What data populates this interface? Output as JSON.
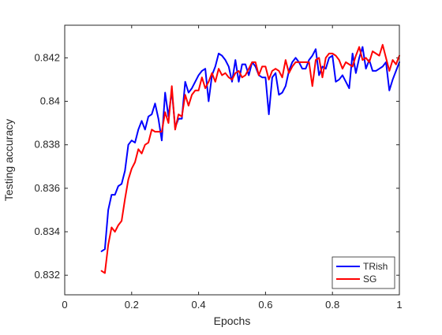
{
  "chart_data": {
    "type": "line",
    "title": "",
    "xlabel": "Epochs",
    "ylabel": "Testing accuracy",
    "xlim": [
      0,
      1
    ],
    "ylim": [
      0.8311,
      0.8435
    ],
    "xticks": [
      0,
      0.2,
      0.4,
      0.6,
      0.8,
      1
    ],
    "xtick_labels": [
      "0",
      "0.2",
      "0.4",
      "0.6",
      "0.8",
      "1"
    ],
    "yticks": [
      0.832,
      0.834,
      0.836,
      0.838,
      0.84,
      0.842
    ],
    "ytick_labels": [
      "0.832",
      "0.834",
      "0.836",
      "0.838",
      "0.84",
      "0.842"
    ],
    "grid": false,
    "legend_position": "bottom-right",
    "series": [
      {
        "name": "TRish",
        "color": "#0000ff",
        "x": [
          0.11,
          0.12,
          0.13,
          0.14,
          0.15,
          0.16,
          0.17,
          0.18,
          0.19,
          0.2,
          0.21,
          0.22,
          0.23,
          0.24,
          0.25,
          0.26,
          0.27,
          0.28,
          0.29,
          0.3,
          0.31,
          0.32,
          0.33,
          0.34,
          0.35,
          0.36,
          0.37,
          0.38,
          0.39,
          0.4,
          0.41,
          0.42,
          0.43,
          0.44,
          0.45,
          0.46,
          0.47,
          0.48,
          0.49,
          0.5,
          0.51,
          0.52,
          0.53,
          0.54,
          0.55,
          0.56,
          0.57,
          0.58,
          0.59,
          0.6,
          0.61,
          0.62,
          0.63,
          0.64,
          0.65,
          0.66,
          0.67,
          0.68,
          0.69,
          0.7,
          0.71,
          0.72,
          0.73,
          0.74,
          0.75,
          0.76,
          0.77,
          0.78,
          0.79,
          0.8,
          0.81,
          0.82,
          0.83,
          0.84,
          0.85,
          0.86,
          0.87,
          0.88,
          0.89,
          0.9,
          0.91,
          0.92,
          0.93,
          0.94,
          0.95,
          0.96,
          0.97,
          0.98,
          0.99,
          1.0
        ],
        "values": [
          0.8331,
          0.8332,
          0.835,
          0.8357,
          0.8357,
          0.8361,
          0.8362,
          0.8368,
          0.838,
          0.8382,
          0.8381,
          0.8387,
          0.8391,
          0.8387,
          0.8393,
          0.8394,
          0.8399,
          0.8392,
          0.8382,
          0.8404,
          0.8393,
          0.8405,
          0.8388,
          0.8392,
          0.8392,
          0.8409,
          0.8404,
          0.8406,
          0.8409,
          0.8412,
          0.8414,
          0.8415,
          0.84,
          0.8412,
          0.8416,
          0.8422,
          0.8421,
          0.8419,
          0.8416,
          0.8409,
          0.8419,
          0.8409,
          0.8417,
          0.8417,
          0.8412,
          0.8418,
          0.8416,
          0.8412,
          0.8411,
          0.8411,
          0.8394,
          0.8411,
          0.8413,
          0.8403,
          0.8404,
          0.8407,
          0.8414,
          0.8418,
          0.842,
          0.8418,
          0.8415,
          0.8415,
          0.8419,
          0.8421,
          0.8424,
          0.8412,
          0.8416,
          0.8415,
          0.842,
          0.8421,
          0.8409,
          0.841,
          0.8412,
          0.8409,
          0.8406,
          0.8422,
          0.8413,
          0.842,
          0.8425,
          0.8415,
          0.8419,
          0.8414,
          0.8414,
          0.8415,
          0.8416,
          0.8418,
          0.8405,
          0.841,
          0.8414,
          0.8418
        ]
      },
      {
        "name": "SG",
        "color": "#ff0000",
        "x": [
          0.11,
          0.12,
          0.13,
          0.14,
          0.15,
          0.16,
          0.17,
          0.18,
          0.19,
          0.2,
          0.21,
          0.22,
          0.23,
          0.24,
          0.25,
          0.26,
          0.27,
          0.28,
          0.29,
          0.3,
          0.31,
          0.32,
          0.33,
          0.34,
          0.35,
          0.36,
          0.37,
          0.38,
          0.39,
          0.4,
          0.41,
          0.42,
          0.43,
          0.44,
          0.45,
          0.46,
          0.47,
          0.48,
          0.49,
          0.5,
          0.51,
          0.52,
          0.53,
          0.54,
          0.55,
          0.56,
          0.57,
          0.58,
          0.59,
          0.6,
          0.61,
          0.62,
          0.63,
          0.64,
          0.65,
          0.66,
          0.67,
          0.68,
          0.69,
          0.7,
          0.71,
          0.72,
          0.73,
          0.74,
          0.75,
          0.76,
          0.77,
          0.78,
          0.79,
          0.8,
          0.81,
          0.82,
          0.83,
          0.84,
          0.85,
          0.86,
          0.87,
          0.88,
          0.89,
          0.9,
          0.91,
          0.92,
          0.93,
          0.94,
          0.95,
          0.96,
          0.97,
          0.98,
          0.99,
          1.0
        ],
        "values": [
          0.8322,
          0.8321,
          0.8334,
          0.8342,
          0.834,
          0.8343,
          0.8345,
          0.8355,
          0.8364,
          0.8369,
          0.8372,
          0.8378,
          0.8376,
          0.838,
          0.8381,
          0.8387,
          0.8386,
          0.8386,
          0.8386,
          0.8395,
          0.839,
          0.8407,
          0.8387,
          0.8394,
          0.8393,
          0.8403,
          0.8398,
          0.8403,
          0.8405,
          0.8405,
          0.8411,
          0.8406,
          0.8409,
          0.8413,
          0.8409,
          0.8415,
          0.8412,
          0.8413,
          0.8411,
          0.841,
          0.8413,
          0.8414,
          0.8411,
          0.8412,
          0.8415,
          0.8418,
          0.8418,
          0.8412,
          0.8416,
          0.8416,
          0.841,
          0.8414,
          0.8415,
          0.8414,
          0.8411,
          0.8419,
          0.8413,
          0.8416,
          0.8418,
          0.8418,
          0.8418,
          0.8418,
          0.8418,
          0.8407,
          0.8419,
          0.842,
          0.8411,
          0.842,
          0.8422,
          0.8422,
          0.8421,
          0.8419,
          0.8415,
          0.8418,
          0.8417,
          0.8416,
          0.8421,
          0.8425,
          0.8419,
          0.842,
          0.8418,
          0.8423,
          0.8422,
          0.8421,
          0.8426,
          0.842,
          0.8414,
          0.8419,
          0.8417,
          0.8421
        ]
      }
    ]
  }
}
